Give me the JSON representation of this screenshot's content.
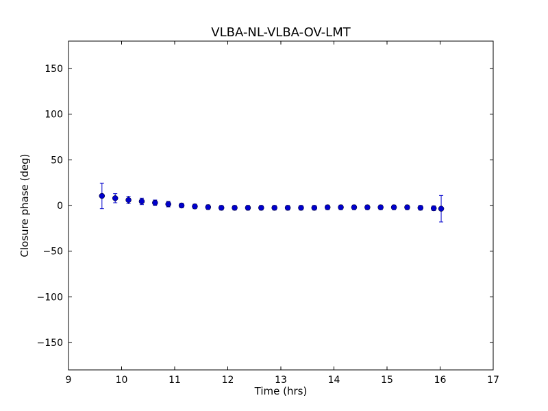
{
  "chart_data": {
    "type": "scatter",
    "title": "VLBA-NL-VLBA-OV-LMT",
    "xlabel": "Time (hrs)",
    "ylabel": "Closure phase (deg)",
    "xlim": [
      9,
      17
    ],
    "ylim": [
      -180,
      180
    ],
    "xticks": [
      9,
      10,
      11,
      12,
      13,
      14,
      15,
      16,
      17
    ],
    "yticks": [
      -150,
      -100,
      -50,
      0,
      50,
      100,
      150
    ],
    "xtick_labels": [
      "9",
      "10",
      "11",
      "12",
      "13",
      "14",
      "15",
      "16",
      "17"
    ],
    "ytick_labels": [
      "−150",
      "−100",
      "−50",
      "0",
      "50",
      "100",
      "150"
    ],
    "grid": false,
    "color": "#0000cc",
    "series": [
      {
        "x": [
          9.63,
          9.88,
          10.13,
          10.38,
          10.63,
          10.88,
          11.13,
          11.38,
          11.63,
          11.88,
          12.13,
          12.38,
          12.63,
          12.88,
          13.13,
          13.38,
          13.63,
          13.88,
          14.13,
          14.38,
          14.63,
          14.88,
          15.13,
          15.38,
          15.63,
          15.88,
          16.02
        ],
        "y": [
          10.5,
          8.0,
          6.0,
          4.5,
          3.0,
          1.5,
          0.0,
          -1.0,
          -1.8,
          -2.5,
          -2.5,
          -2.5,
          -2.5,
          -2.5,
          -2.5,
          -2.5,
          -2.5,
          -2.0,
          -2.0,
          -2.0,
          -2.0,
          -2.0,
          -2.0,
          -2.0,
          -2.5,
          -3.0,
          -3.5
        ],
        "err": [
          14,
          5,
          4,
          3.5,
          3,
          3,
          2.5,
          2.5,
          2.5,
          2.5,
          2.5,
          2.5,
          2.5,
          2.5,
          2.5,
          2.5,
          2.5,
          2.5,
          2.5,
          2.5,
          2.5,
          2.5,
          2.5,
          2.5,
          2.5,
          2.5,
          14.5
        ]
      }
    ]
  }
}
